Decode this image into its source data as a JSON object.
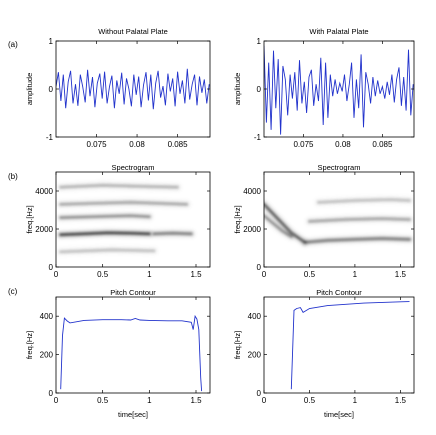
{
  "row_labels": [
    "(a)",
    "(b)",
    "(c)"
  ],
  "colors": {
    "signal": "#2233cc",
    "axis": "#000000",
    "spectro_dark": "#1a1a1a"
  },
  "chart_data": [
    {
      "id": "wave_left",
      "type": "line",
      "title": "Without Palatal Plate",
      "xlabel": "",
      "ylabel": "amplitude",
      "xlim": [
        0.07,
        0.089
      ],
      "ylim": [
        -1,
        1
      ],
      "xticks": [
        0.075,
        0.08,
        0.085
      ],
      "xtick_labels": [
        "0.075",
        "0.08",
        "0.085"
      ],
      "yticks": [
        -1,
        0,
        1
      ],
      "ytick_labels": [
        "-1",
        "0",
        "1"
      ],
      "series": [
        {
          "x": [
            0.07,
            0.0703,
            0.0706,
            0.0709,
            0.0712,
            0.0715,
            0.0718,
            0.0721,
            0.0724,
            0.0727,
            0.073,
            0.0733,
            0.0736,
            0.0739,
            0.0742,
            0.0745,
            0.0748,
            0.0751,
            0.0754,
            0.0757,
            0.076,
            0.0763,
            0.0766,
            0.0769,
            0.0772,
            0.0775,
            0.0778,
            0.0781,
            0.0784,
            0.0787,
            0.079,
            0.0793,
            0.0796,
            0.0799,
            0.0802,
            0.0805,
            0.0808,
            0.0811,
            0.0814,
            0.0817,
            0.082,
            0.0823,
            0.0826,
            0.0829,
            0.0832,
            0.0835,
            0.0838,
            0.0841,
            0.0844,
            0.0847,
            0.085,
            0.0853,
            0.0856,
            0.0859,
            0.0862,
            0.0865,
            0.0868,
            0.0871,
            0.0874,
            0.0877,
            0.088,
            0.0883,
            0.0886,
            0.0889
          ],
          "y": [
            0.05,
            0.35,
            -0.25,
            0.3,
            -0.4,
            0.15,
            0.38,
            -0.3,
            0.1,
            -0.35,
            0.3,
            0.05,
            -0.28,
            0.4,
            -0.15,
            0.25,
            -0.38,
            0.12,
            0.32,
            -0.2,
            0.36,
            -0.3,
            0.05,
            0.28,
            -0.4,
            0.18,
            -0.1,
            0.34,
            -0.32,
            0.22,
            0.0,
            -0.36,
            0.3,
            -0.12,
            0.26,
            -0.38,
            0.08,
            0.35,
            -0.24,
            0.3,
            -0.42,
            0.12,
            0.38,
            -0.18,
            0.06,
            -0.34,
            0.32,
            -0.05,
            0.22,
            -0.36,
            0.36,
            -0.1,
            0.18,
            -0.3,
            0.42,
            -0.22,
            0.1,
            0.3,
            -0.34,
            0.26,
            -0.08,
            0.2,
            -0.3,
            0.1
          ]
        }
      ]
    },
    {
      "id": "wave_right",
      "type": "line",
      "title": "With Palatal Plate",
      "xlabel": "",
      "ylabel": "amplitude",
      "xlim": [
        0.07,
        0.089
      ],
      "ylim": [
        -1,
        1
      ],
      "xticks": [
        0.075,
        0.08,
        0.085
      ],
      "xtick_labels": [
        "0.075",
        "0.08",
        "0.085"
      ],
      "yticks": [
        -1,
        0,
        1
      ],
      "ytick_labels": [
        "-1",
        "0",
        "1"
      ],
      "series": [
        {
          "x": [
            0.07,
            0.0703,
            0.0706,
            0.0709,
            0.0712,
            0.0715,
            0.0718,
            0.0721,
            0.0724,
            0.0727,
            0.073,
            0.0733,
            0.0736,
            0.0739,
            0.0742,
            0.0745,
            0.0748,
            0.0751,
            0.0754,
            0.0757,
            0.076,
            0.0763,
            0.0766,
            0.0769,
            0.0772,
            0.0775,
            0.0778,
            0.0781,
            0.0784,
            0.0787,
            0.079,
            0.0793,
            0.0796,
            0.0799,
            0.0802,
            0.0805,
            0.0808,
            0.0811,
            0.0814,
            0.0817,
            0.082,
            0.0823,
            0.0826,
            0.0829,
            0.0832,
            0.0835,
            0.0838,
            0.0841,
            0.0844,
            0.0847,
            0.085,
            0.0853,
            0.0856,
            0.0859,
            0.0862,
            0.0865,
            0.0868,
            0.0871,
            0.0874,
            0.0877,
            0.088,
            0.0883,
            0.0886,
            0.0889
          ],
          "y": [
            0.9,
            -0.7,
            0.55,
            -0.85,
            0.8,
            -0.4,
            0.62,
            -0.95,
            0.48,
            0.2,
            -0.55,
            0.3,
            -0.2,
            0.35,
            -0.45,
            0.6,
            -0.3,
            0.15,
            -0.5,
            0.25,
            0.4,
            -0.35,
            0.1,
            -0.25,
            0.65,
            -0.75,
            0.55,
            -0.6,
            0.3,
            -0.15,
            0.2,
            -0.1,
            0.12,
            -0.05,
            0.3,
            -0.25,
            0.1,
            0.55,
            -0.6,
            0.2,
            -0.4,
            0.72,
            -0.8,
            0.35,
            0.1,
            -0.3,
            0.25,
            -0.15,
            0.18,
            -0.1,
            0.05,
            -0.2,
            0.15,
            -0.12,
            0.3,
            -0.28,
            0.2,
            0.45,
            -0.35,
            0.25,
            -0.45,
            0.82,
            -0.55,
            0.1
          ]
        }
      ]
    },
    {
      "id": "spec_left",
      "type": "heatmap",
      "title": "Spectrogram",
      "xlabel": "",
      "ylabel": "freq.[Hz]",
      "xlim": [
        0,
        1.65
      ],
      "ylim": [
        0,
        5000
      ],
      "xticks": [
        0,
        0.5,
        1,
        1.5
      ],
      "xtick_labels": [
        "0",
        "0.5",
        "1",
        "1.5"
      ],
      "yticks": [
        0,
        2000,
        4000
      ],
      "ytick_labels": [
        "0",
        "2000",
        "4000"
      ],
      "bands": [
        {
          "x": [
            0.05,
            0.3,
            0.55,
            0.8,
            1.0
          ],
          "y": [
            1700,
            1750,
            1800,
            1780,
            1750
          ],
          "intensity": 0.85
        },
        {
          "x": [
            1.05,
            1.25,
            1.45
          ],
          "y": [
            1750,
            1780,
            1750
          ],
          "intensity": 0.55
        },
        {
          "x": [
            0.05,
            0.4,
            0.8,
            1.0
          ],
          "y": [
            2600,
            2650,
            2700,
            2650
          ],
          "intensity": 0.45
        },
        {
          "x": [
            0.05,
            0.4,
            0.8,
            1.1,
            1.4
          ],
          "y": [
            3300,
            3350,
            3400,
            3350,
            3300
          ],
          "intensity": 0.35
        },
        {
          "x": [
            0.05,
            0.5,
            0.9,
            1.3
          ],
          "y": [
            4200,
            4300,
            4250,
            4200
          ],
          "intensity": 0.3
        },
        {
          "x": [
            0.05,
            0.6,
            1.05
          ],
          "y": [
            800,
            900,
            850
          ],
          "intensity": 0.25
        }
      ]
    },
    {
      "id": "spec_right",
      "type": "heatmap",
      "title": "Spectrogram",
      "xlabel": "",
      "ylabel": "freq.[Hz]",
      "xlim": [
        0,
        1.65
      ],
      "ylim": [
        0,
        5000
      ],
      "xticks": [
        0,
        0.5,
        1,
        1.5
      ],
      "xtick_labels": [
        "0",
        "0.5",
        "1",
        "1.5"
      ],
      "yticks": [
        0,
        2000,
        4000
      ],
      "ytick_labels": [
        "0",
        "2000",
        "4000"
      ],
      "bands": [
        {
          "x": [
            0.0,
            0.1,
            0.2,
            0.3,
            0.45
          ],
          "y": [
            3300,
            2800,
            2300,
            1800,
            1300
          ],
          "intensity": 0.7
        },
        {
          "x": [
            0.45,
            0.7,
            1.0,
            1.3,
            1.6
          ],
          "y": [
            1300,
            1400,
            1450,
            1500,
            1450
          ],
          "intensity": 0.55
        },
        {
          "x": [
            0.0,
            0.1,
            0.2,
            0.3
          ],
          "y": [
            2700,
            2300,
            1900,
            1600
          ],
          "intensity": 0.45
        },
        {
          "x": [
            0.5,
            0.9,
            1.3,
            1.6
          ],
          "y": [
            2400,
            2500,
            2550,
            2500
          ],
          "intensity": 0.35
        },
        {
          "x": [
            0.6,
            1.0,
            1.4,
            1.6
          ],
          "y": [
            3400,
            3500,
            3550,
            3500
          ],
          "intensity": 0.25
        }
      ]
    },
    {
      "id": "pitch_left",
      "type": "line",
      "title": "Pitch Contour",
      "xlabel": "time[sec]",
      "ylabel": "freq.[Hz]",
      "xlim": [
        0,
        1.65
      ],
      "ylim": [
        0,
        500
      ],
      "xticks": [
        0,
        0.5,
        1,
        1.5
      ],
      "xtick_labels": [
        "0",
        "0.5",
        "1",
        "1.5"
      ],
      "yticks": [
        0,
        200,
        400
      ],
      "ytick_labels": [
        "0",
        "200",
        "400"
      ],
      "series": [
        {
          "x": [
            0.05,
            0.07,
            0.09,
            0.12,
            0.15,
            0.3,
            0.5,
            0.7,
            0.8,
            0.85,
            0.9,
            1.0,
            1.2,
            1.35,
            1.45,
            1.47,
            1.49,
            1.51,
            1.53,
            1.55,
            1.56
          ],
          "y": [
            20,
            300,
            390,
            375,
            365,
            378,
            382,
            382,
            380,
            388,
            380,
            378,
            376,
            376,
            368,
            330,
            400,
            385,
            330,
            80,
            10
          ]
        }
      ]
    },
    {
      "id": "pitch_right",
      "type": "line",
      "title": "Pitch Contour",
      "xlabel": "time[sec]",
      "ylabel": "freq.[Hz]",
      "xlim": [
        0,
        1.65
      ],
      "ylim": [
        0,
        500
      ],
      "xticks": [
        0,
        0.5,
        1,
        1.5
      ],
      "xtick_labels": [
        "0",
        "0.5",
        "1",
        "1.5"
      ],
      "yticks": [
        0,
        200,
        400
      ],
      "ytick_labels": [
        "0",
        "200",
        "400"
      ],
      "series": [
        {
          "x": [
            0.3,
            0.33,
            0.36,
            0.4,
            0.43,
            0.5,
            0.7,
            0.9,
            1.1,
            1.3,
            1.5,
            1.6
          ],
          "y": [
            20,
            430,
            440,
            445,
            420,
            440,
            455,
            462,
            468,
            472,
            475,
            476
          ]
        }
      ]
    }
  ]
}
